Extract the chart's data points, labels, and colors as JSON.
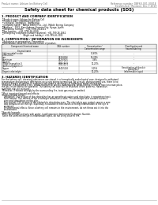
{
  "bg_color": "#ffffff",
  "header_left": "Product name: Lithium Ion Battery Cell",
  "header_right_line1": "Reference number: DBF60-001-0001E",
  "header_right_line2": "Established / Revision: Dec.7.2019",
  "title": "Safety data sheet for chemical products (SDS)",
  "section1_title": "1. PRODUCT AND COMPANY IDENTIFICATION",
  "section1_items": [
    "・Product name: Lithium Ion Battery Cell",
    "・Product code: Cylindrical-type cell",
    "  (IFR18650, IFR18650L, IFR18650A)",
    "・Company name:   Banyu Electric Co., Ltd., Mobile Energy Company",
    "・Address:   2021  Kaminakuan, Sumoto-City, Hyogo, Japan",
    "・Telephone number:   +81-(799)-26-4111",
    "・Fax number:   +81-1799-26-4120",
    "・Emergency telephone number (daytime): +81-799-26-2662",
    "                              (Night and holiday): +81-799-26-2101"
  ],
  "section2_title": "2. COMPOSITION / INFORMATION ON INGREDIENTS",
  "section2_subtitle": "・Substance or preparation: Preparation",
  "section2_sub2": "・Information about the chemical nature of product:",
  "table_col0_header": "Component/chemical name",
  "table_col0_sub": "Several name",
  "table_col1_header": "CAS number",
  "table_col2_header": "Concentration /",
  "table_col2_header2": "Concentration range",
  "table_col3_header": "Classification and",
  "table_col3_header2": "hazard labeling",
  "table_rows": [
    [
      "Lithium cobalt oxide",
      "-",
      "30-60%",
      "-"
    ],
    [
      "(LiMn₂CoO₄)",
      "",
      "",
      ""
    ],
    [
      "Iron",
      "7439-89-6",
      "15-25%",
      "-"
    ],
    [
      "Aluminum",
      "7429-90-5",
      "3-8%",
      "-"
    ],
    [
      "Graphite",
      "",
      "10-20%",
      "-"
    ],
    [
      "(Flake or graphite-l)",
      "7782-42-5",
      "",
      ""
    ],
    [
      "(Artificial graphite-l)",
      "7782-42-5",
      "",
      ""
    ],
    [
      "Copper",
      "7440-50-8",
      "5-15%",
      "Sensitization of the skin"
    ],
    [
      "",
      "",
      "",
      "group No.2"
    ],
    [
      "Organic electrolyte",
      "-",
      "10-20%",
      "Inflammable liquid"
    ]
  ],
  "section3_title": "3. HAZARDS IDENTIFICATION",
  "section3_body": [
    "For the battery cell, chemical substances are stored in a hermetically sealed metal case, designed to withstand",
    "temperature and pressure differences occurring during normal use. As a result, during normal use, there is no",
    "physical danger of ignition or explosion and there is no danger of hazardous materials leakage.",
    "  However, if exposed to a fire, added mechanical shocks, decomposed, when electro-chemical reactions take place,",
    "the gas inside cannot be operated. The battery cell case will be dissolved of the patterns. Hazardous",
    "materials may be released.",
    "  Moreover, if heated strongly by the surrounding fire, toxic gas may be emitted.",
    "",
    "・Most important hazard and effects:",
    "  Human health effects:",
    "    Inhalation: The release of the electrolyte has an anesthesia action and stimulates in respiratory tract.",
    "    Skin contact: The release of the electrolyte stimulates a skin. The electrolyte skin contact causes a",
    "    sore and stimulation on the skin.",
    "    Eye contact: The release of the electrolyte stimulates eyes. The electrolyte eye contact causes a sore",
    "    and stimulation on the eye. Especially, a substance that causes a strong inflammation of the eye is",
    "    contained.",
    "    Environmental effects: Since a battery cell remains in the environment, do not throw out it into the",
    "    environment.",
    "",
    "・Specific hazards:",
    "  If the electrolyte contacts with water, it will generate detrimental hydrogen fluoride.",
    "  Since the used electrolyte is inflammable liquid, do not bring close to fire."
  ],
  "footer_line": true
}
